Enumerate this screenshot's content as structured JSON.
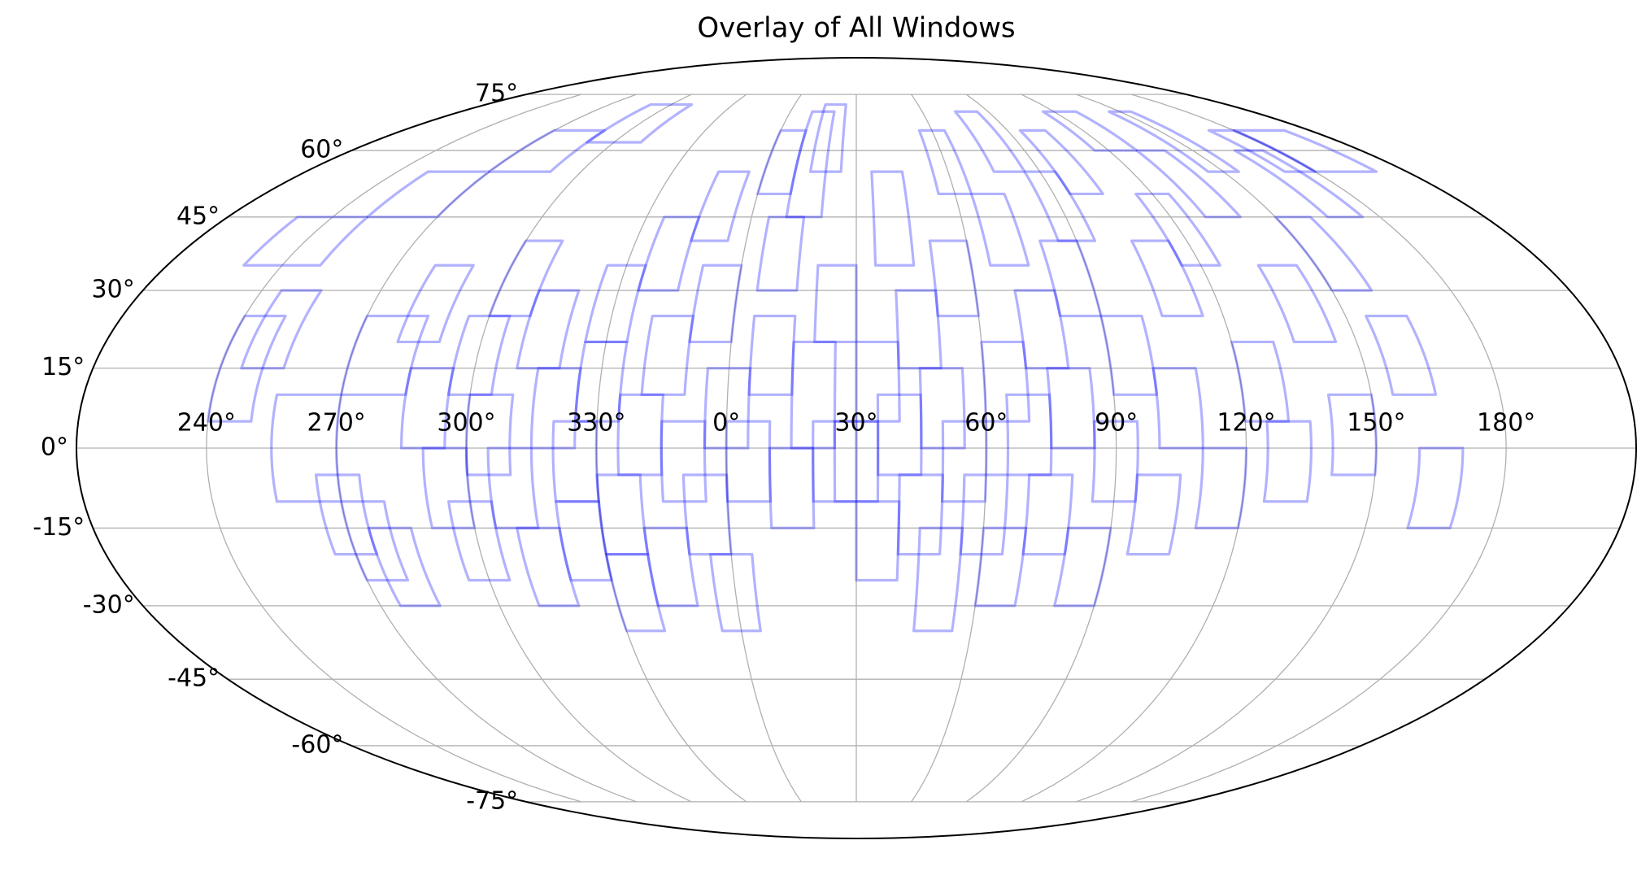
{
  "chart_data": {
    "type": "mollweide",
    "title": "Overlay of All Windows",
    "grid": true,
    "color": "#0000ff",
    "alpha": 0.3,
    "xlim": [
      -180,
      180
    ],
    "ylim": [
      -90,
      90
    ],
    "xticks": [
      {
        "value": -150,
        "label": "240°"
      },
      {
        "value": -120,
        "label": "270°"
      },
      {
        "value": -90,
        "label": "300°"
      },
      {
        "value": -60,
        "label": "330°"
      },
      {
        "value": -30,
        "label": "0°"
      },
      {
        "value": 0,
        "label": "30°"
      },
      {
        "value": 30,
        "label": "60°"
      },
      {
        "value": 60,
        "label": "90°"
      },
      {
        "value": 90,
        "label": "120°"
      },
      {
        "value": 120,
        "label": "150°"
      },
      {
        "value": 150,
        "label": "180°"
      }
    ],
    "yticks": [
      {
        "value": -75,
        "label": "-75°"
      },
      {
        "value": -60,
        "label": "-60°"
      },
      {
        "value": -45,
        "label": "-45°"
      },
      {
        "value": -30,
        "label": "-30°"
      },
      {
        "value": -15,
        "label": "-15°"
      },
      {
        "value": 0,
        "label": "0°"
      },
      {
        "value": 15,
        "label": "15°"
      },
      {
        "value": 30,
        "label": "30°"
      },
      {
        "value": 45,
        "label": "45°"
      },
      {
        "value": 60,
        "label": "60°"
      },
      {
        "value": 75,
        "label": "75°"
      }
    ],
    "windows": [
      {
        "lon": [
          -150,
          -140
        ],
        "lat": [
          5,
          25
        ]
      },
      {
        "lon": [
          -145,
          -135
        ],
        "lat": [
          15,
          30
        ]
      },
      {
        "lon": [
          -135,
          -120
        ],
        "lat": [
          -10,
          10
        ]
      },
      {
        "lon": [
          -125,
          -115
        ],
        "lat": [
          -20,
          -5
        ]
      },
      {
        "lon": [
          -120,
          -110
        ],
        "lat": [
          -25,
          -10
        ]
      },
      {
        "lon": [
          -115,
          -105
        ],
        "lat": [
          -30,
          -15
        ]
      },
      {
        "lon": [
          -120,
          -105
        ],
        "lat": [
          10,
          25
        ]
      },
      {
        "lon": [
          -110,
          -100
        ],
        "lat": [
          20,
          35
        ]
      },
      {
        "lon": [
          -105,
          -95
        ],
        "lat": [
          0,
          15
        ]
      },
      {
        "lon": [
          -100,
          -90
        ],
        "lat": [
          -15,
          0
        ]
      },
      {
        "lon": [
          -95,
          -85
        ],
        "lat": [
          -25,
          -10
        ]
      },
      {
        "lon": [
          -95,
          -85
        ],
        "lat": [
          10,
          25
        ]
      },
      {
        "lon": [
          -90,
          -80
        ],
        "lat": [
          25,
          40
        ]
      },
      {
        "lon": [
          -90,
          -80
        ],
        "lat": [
          -5,
          10
        ]
      },
      {
        "lon": [
          -85,
          -75
        ],
        "lat": [
          -15,
          0
        ]
      },
      {
        "lon": [
          -80,
          -70
        ],
        "lat": [
          -30,
          -15
        ]
      },
      {
        "lon": [
          -80,
          -70
        ],
        "lat": [
          15,
          30
        ]
      },
      {
        "lon": [
          -75,
          -65
        ],
        "lat": [
          0,
          15
        ]
      },
      {
        "lon": [
          -70,
          -60
        ],
        "lat": [
          -10,
          5
        ]
      },
      {
        "lon": [
          -70,
          -60
        ],
        "lat": [
          -25,
          -10
        ]
      },
      {
        "lon": [
          -65,
          -55
        ],
        "lat": [
          20,
          35
        ]
      },
      {
        "lon": [
          -65,
          -55
        ],
        "lat": [
          5,
          20
        ]
      },
      {
        "lon": [
          -60,
          -50
        ],
        "lat": [
          -20,
          -5
        ]
      },
      {
        "lon": [
          -60,
          -50
        ],
        "lat": [
          -35,
          -20
        ]
      },
      {
        "lon": [
          -55,
          -45
        ],
        "lat": [
          30,
          45
        ]
      },
      {
        "lon": [
          -55,
          -45
        ],
        "lat": [
          -5,
          10
        ]
      },
      {
        "lon": [
          -50,
          -40
        ],
        "lat": [
          10,
          25
        ]
      },
      {
        "lon": [
          -50,
          -40
        ],
        "lat": [
          -30,
          -15
        ]
      },
      {
        "lon": [
          -45,
          -35
        ],
        "lat": [
          -10,
          5
        ]
      },
      {
        "lon": [
          -45,
          -35
        ],
        "lat": [
          40,
          55
        ]
      },
      {
        "lon": [
          -40,
          -30
        ],
        "lat": [
          20,
          35
        ]
      },
      {
        "lon": [
          -40,
          -30
        ],
        "lat": [
          -20,
          -5
        ]
      },
      {
        "lon": [
          -35,
          -25
        ],
        "lat": [
          0,
          15
        ]
      },
      {
        "lon": [
          -35,
          -25
        ],
        "lat": [
          -35,
          -20
        ]
      },
      {
        "lon": [
          -30,
          -20
        ],
        "lat": [
          50,
          65
        ]
      },
      {
        "lon": [
          -30,
          -20
        ],
        "lat": [
          -10,
          5
        ]
      },
      {
        "lon": [
          -25,
          -15
        ],
        "lat": [
          10,
          25
        ]
      },
      {
        "lon": [
          -25,
          -15
        ],
        "lat": [
          30,
          45
        ]
      },
      {
        "lon": [
          -20,
          -10
        ],
        "lat": [
          -15,
          0
        ]
      },
      {
        "lon": [
          -20,
          -10
        ],
        "lat": [
          45,
          70
        ]
      },
      {
        "lon": [
          -15,
          -5
        ],
        "lat": [
          0,
          20
        ]
      },
      {
        "lon": [
          -15,
          -5
        ],
        "lat": [
          55,
          72
        ]
      },
      {
        "lon": [
          -10,
          0
        ],
        "lat": [
          -10,
          5
        ]
      },
      {
        "lon": [
          -10,
          0
        ],
        "lat": [
          20,
          35
        ]
      },
      {
        "lon": [
          -5,
          5
        ],
        "lat": [
          -10,
          5
        ]
      },
      {
        "lon": [
          0,
          10
        ],
        "lat": [
          5,
          20
        ]
      },
      {
        "lon": [
          0,
          10
        ],
        "lat": [
          -25,
          -10
        ]
      },
      {
        "lon": [
          5,
          15
        ],
        "lat": [
          -5,
          10
        ]
      },
      {
        "lon": [
          5,
          15
        ],
        "lat": [
          35,
          55
        ]
      },
      {
        "lon": [
          10,
          20
        ],
        "lat": [
          15,
          30
        ]
      },
      {
        "lon": [
          10,
          20
        ],
        "lat": [
          -20,
          -5
        ]
      },
      {
        "lon": [
          15,
          25
        ],
        "lat": [
          0,
          15
        ]
      },
      {
        "lon": [
          15,
          25
        ],
        "lat": [
          -35,
          -15
        ]
      },
      {
        "lon": [
          20,
          30
        ],
        "lat": [
          25,
          40
        ]
      },
      {
        "lon": [
          20,
          30
        ],
        "lat": [
          -10,
          5
        ]
      },
      {
        "lon": [
          25,
          35
        ],
        "lat": [
          50,
          65
        ]
      },
      {
        "lon": [
          25,
          35
        ],
        "lat": [
          -20,
          -5
        ]
      },
      {
        "lon": [
          30,
          40
        ],
        "lat": [
          5,
          20
        ]
      },
      {
        "lon": [
          30,
          40
        ],
        "lat": [
          -30,
          -15
        ]
      },
      {
        "lon": [
          35,
          45
        ],
        "lat": [
          -5,
          10
        ]
      },
      {
        "lon": [
          35,
          45
        ],
        "lat": [
          35,
          50
        ]
      },
      {
        "lon": [
          40,
          50
        ],
        "lat": [
          15,
          30
        ]
      },
      {
        "lon": [
          40,
          50
        ],
        "lat": [
          -20,
          -5
        ]
      },
      {
        "lon": [
          45,
          55
        ],
        "lat": [
          0,
          15
        ]
      },
      {
        "lon": [
          45,
          55
        ],
        "lat": [
          55,
          70
        ]
      },
      {
        "lon": [
          50,
          60
        ],
        "lat": [
          -30,
          -15
        ]
      },
      {
        "lon": [
          50,
          60
        ],
        "lat": [
          25,
          40
        ]
      },
      {
        "lon": [
          55,
          65
        ],
        "lat": [
          -10,
          5
        ]
      },
      {
        "lon": [
          55,
          65
        ],
        "lat": [
          40,
          55
        ]
      },
      {
        "lon": [
          60,
          70
        ],
        "lat": [
          10,
          25
        ]
      },
      {
        "lon": [
          65,
          75
        ],
        "lat": [
          -20,
          -5
        ]
      },
      {
        "lon": [
          65,
          75
        ],
        "lat": [
          50,
          65
        ]
      },
      {
        "lon": [
          70,
          80
        ],
        "lat": [
          0,
          15
        ]
      },
      {
        "lon": [
          75,
          85
        ],
        "lat": [
          25,
          40
        ]
      },
      {
        "lon": [
          80,
          90
        ],
        "lat": [
          -15,
          0
        ]
      },
      {
        "lon": [
          85,
          95
        ],
        "lat": [
          35,
          50
        ]
      },
      {
        "lon": [
          90,
          100
        ],
        "lat": [
          5,
          20
        ]
      },
      {
        "lon": [
          95,
          105
        ],
        "lat": [
          -10,
          5
        ]
      },
      {
        "lon": [
          100,
          110
        ],
        "lat": [
          45,
          60
        ]
      },
      {
        "lon": [
          105,
          115
        ],
        "lat": [
          20,
          35
        ]
      },
      {
        "lon": [
          110,
          120
        ],
        "lat": [
          -5,
          10
        ]
      },
      {
        "lon": [
          115,
          125
        ],
        "lat": [
          55,
          70
        ]
      },
      {
        "lon": [
          120,
          130
        ],
        "lat": [
          30,
          45
        ]
      },
      {
        "lon": [
          125,
          135
        ],
        "lat": [
          10,
          25
        ]
      },
      {
        "lon": [
          130,
          140
        ],
        "lat": [
          -15,
          0
        ]
      },
      {
        "lon": [
          135,
          145
        ],
        "lat": [
          45,
          60
        ]
      },
      {
        "lon": [
          140,
          150
        ],
        "lat": [
          55,
          65
        ]
      },
      {
        "lon": [
          -160,
          -140
        ],
        "lat": [
          35,
          45
        ]
      },
      {
        "lon": [
          -140,
          -120
        ],
        "lat": [
          45,
          55
        ]
      },
      {
        "lon": [
          -120,
          -100
        ],
        "lat": [
          55,
          65
        ]
      },
      {
        "lon": [
          -100,
          -80
        ],
        "lat": [
          62,
          72
        ]
      },
      {
        "lon": [
          150,
          170
        ],
        "lat": [
          55,
          65
        ]
      },
      {
        "lon": [
          85,
          100
        ],
        "lat": [
          60,
          70
        ]
      }
    ]
  }
}
